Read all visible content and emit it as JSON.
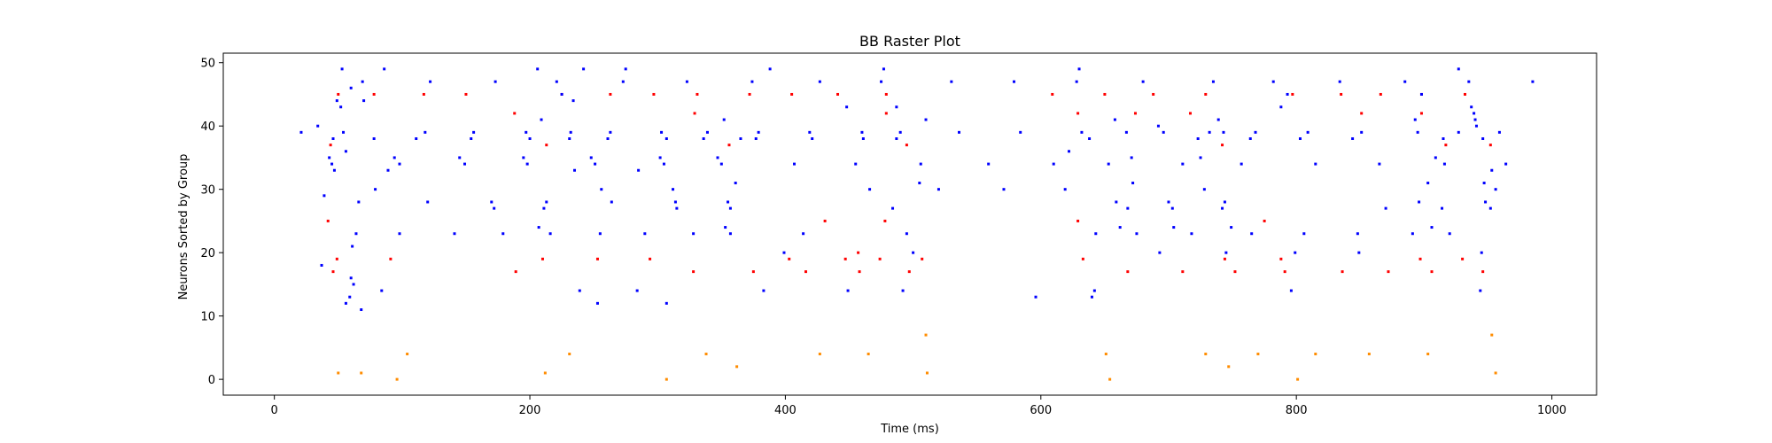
{
  "chart_data": {
    "type": "scatter",
    "title": "BB Raster Plot",
    "xlabel": "Time (ms)",
    "ylabel": "Neurons Sorted by Group",
    "xlim": [
      -40,
      1035
    ],
    "ylim": [
      -2.5,
      51.5
    ],
    "xticks": [
      0,
      200,
      400,
      600,
      800,
      1000
    ],
    "yticks": [
      0,
      10,
      20,
      30,
      40,
      50
    ],
    "grid": false,
    "series": [
      {
        "color": "#ff8c00",
        "points": [
          [
            50,
            1
          ],
          [
            68,
            1
          ],
          [
            96,
            0
          ],
          [
            104,
            4
          ],
          [
            212,
            1
          ],
          [
            231,
            4
          ],
          [
            307,
            0
          ],
          [
            338,
            4
          ],
          [
            362,
            2
          ],
          [
            427,
            4
          ],
          [
            465,
            4
          ],
          [
            510,
            7
          ],
          [
            511,
            1
          ],
          [
            651,
            4
          ],
          [
            654,
            0
          ],
          [
            729,
            4
          ],
          [
            747,
            2
          ],
          [
            770,
            4
          ],
          [
            801,
            0
          ],
          [
            815,
            4
          ],
          [
            857,
            4
          ],
          [
            903,
            4
          ],
          [
            953,
            7
          ],
          [
            956,
            1
          ]
        ]
      },
      {
        "color": "#ff0000",
        "points": [
          [
            42,
            25
          ],
          [
            44,
            37
          ],
          [
            46,
            17
          ],
          [
            49,
            19
          ],
          [
            50,
            45
          ],
          [
            78,
            45
          ],
          [
            91,
            19
          ],
          [
            117,
            45
          ],
          [
            150,
            45
          ],
          [
            188,
            42
          ],
          [
            189,
            17
          ],
          [
            210,
            19
          ],
          [
            213,
            37
          ],
          [
            225,
            45
          ],
          [
            253,
            19
          ],
          [
            263,
            45
          ],
          [
            294,
            19
          ],
          [
            297,
            45
          ],
          [
            328,
            17
          ],
          [
            329,
            42
          ],
          [
            331,
            45
          ],
          [
            356,
            37
          ],
          [
            372,
            45
          ],
          [
            375,
            17
          ],
          [
            403,
            19
          ],
          [
            405,
            45
          ],
          [
            416,
            17
          ],
          [
            431,
            25
          ],
          [
            441,
            45
          ],
          [
            447,
            19
          ],
          [
            457,
            20
          ],
          [
            458,
            17
          ],
          [
            474,
            19
          ],
          [
            478,
            25
          ],
          [
            479,
            42
          ],
          [
            479,
            45
          ],
          [
            495,
            37
          ],
          [
            497,
            17
          ],
          [
            507,
            19
          ],
          [
            609,
            45
          ],
          [
            629,
            42
          ],
          [
            629,
            25
          ],
          [
            633,
            19
          ],
          [
            650,
            45
          ],
          [
            668,
            17
          ],
          [
            674,
            42
          ],
          [
            688,
            45
          ],
          [
            711,
            17
          ],
          [
            717,
            42
          ],
          [
            729,
            45
          ],
          [
            742,
            37
          ],
          [
            744,
            19
          ],
          [
            752,
            17
          ],
          [
            775,
            25
          ],
          [
            788,
            19
          ],
          [
            791,
            17
          ],
          [
            797,
            45
          ],
          [
            835,
            45
          ],
          [
            836,
            17
          ],
          [
            851,
            42
          ],
          [
            866,
            45
          ],
          [
            872,
            17
          ],
          [
            897,
            19
          ],
          [
            898,
            42
          ],
          [
            898,
            45
          ],
          [
            906,
            17
          ],
          [
            917,
            37
          ],
          [
            930,
            19
          ],
          [
            932,
            45
          ],
          [
            946,
            17
          ],
          [
            952,
            37
          ]
        ]
      },
      {
        "color": "#0000ff",
        "points": [
          [
            21,
            39
          ],
          [
            34,
            40
          ],
          [
            37,
            18
          ],
          [
            39,
            29
          ],
          [
            43,
            35
          ],
          [
            45,
            34
          ],
          [
            46,
            38
          ],
          [
            47,
            33
          ],
          [
            49,
            44
          ],
          [
            52,
            43
          ],
          [
            53,
            49
          ],
          [
            54,
            39
          ],
          [
            56,
            36
          ],
          [
            56,
            12
          ],
          [
            59,
            13
          ],
          [
            60,
            16
          ],
          [
            60,
            46
          ],
          [
            61,
            21
          ],
          [
            62,
            15
          ],
          [
            64,
            23
          ],
          [
            66,
            28
          ],
          [
            68,
            11
          ],
          [
            69,
            47
          ],
          [
            70,
            44
          ],
          [
            78,
            38
          ],
          [
            79,
            30
          ],
          [
            84,
            14
          ],
          [
            86,
            49
          ],
          [
            89,
            33
          ],
          [
            94,
            35
          ],
          [
            98,
            23
          ],
          [
            98,
            34
          ],
          [
            111,
            38
          ],
          [
            118,
            39
          ],
          [
            120,
            28
          ],
          [
            122,
            47
          ],
          [
            141,
            23
          ],
          [
            145,
            35
          ],
          [
            149,
            34
          ],
          [
            154,
            38
          ],
          [
            156,
            39
          ],
          [
            170,
            28
          ],
          [
            172,
            27
          ],
          [
            173,
            47
          ],
          [
            179,
            23
          ],
          [
            195,
            35
          ],
          [
            197,
            39
          ],
          [
            198,
            34
          ],
          [
            200,
            38
          ],
          [
            206,
            49
          ],
          [
            207,
            24
          ],
          [
            209,
            41
          ],
          [
            211,
            27
          ],
          [
            213,
            28
          ],
          [
            216,
            23
          ],
          [
            221,
            47
          ],
          [
            225,
            45
          ],
          [
            231,
            38
          ],
          [
            232,
            39
          ],
          [
            234,
            44
          ],
          [
            235,
            33
          ],
          [
            239,
            14
          ],
          [
            242,
            49
          ],
          [
            248,
            35
          ],
          [
            251,
            34
          ],
          [
            253,
            12
          ],
          [
            255,
            23
          ],
          [
            256,
            30
          ],
          [
            261,
            38
          ],
          [
            263,
            39
          ],
          [
            264,
            28
          ],
          [
            273,
            47
          ],
          [
            275,
            49
          ],
          [
            284,
            14
          ],
          [
            285,
            33
          ],
          [
            290,
            23
          ],
          [
            302,
            35
          ],
          [
            303,
            39
          ],
          [
            305,
            34
          ],
          [
            307,
            38
          ],
          [
            307,
            12
          ],
          [
            312,
            30
          ],
          [
            314,
            28
          ],
          [
            315,
            27
          ],
          [
            323,
            47
          ],
          [
            328,
            23
          ],
          [
            336,
            38
          ],
          [
            339,
            39
          ],
          [
            347,
            35
          ],
          [
            350,
            34
          ],
          [
            352,
            41
          ],
          [
            353,
            24
          ],
          [
            355,
            28
          ],
          [
            357,
            27
          ],
          [
            357,
            23
          ],
          [
            361,
            31
          ],
          [
            365,
            38
          ],
          [
            374,
            47
          ],
          [
            377,
            38
          ],
          [
            379,
            39
          ],
          [
            383,
            14
          ],
          [
            388,
            49
          ],
          [
            399,
            20
          ],
          [
            407,
            34
          ],
          [
            414,
            23
          ],
          [
            419,
            39
          ],
          [
            421,
            38
          ],
          [
            427,
            47
          ],
          [
            448,
            43
          ],
          [
            449,
            14
          ],
          [
            455,
            34
          ],
          [
            460,
            39
          ],
          [
            461,
            38
          ],
          [
            466,
            30
          ],
          [
            475,
            47
          ],
          [
            477,
            49
          ],
          [
            484,
            27
          ],
          [
            487,
            38
          ],
          [
            487,
            43
          ],
          [
            490,
            39
          ],
          [
            492,
            14
          ],
          [
            495,
            23
          ],
          [
            500,
            20
          ],
          [
            505,
            31
          ],
          [
            506,
            34
          ],
          [
            510,
            41
          ],
          [
            520,
            30
          ],
          [
            530,
            47
          ],
          [
            536,
            39
          ],
          [
            559,
            34
          ],
          [
            571,
            30
          ],
          [
            579,
            47
          ],
          [
            584,
            39
          ],
          [
            596,
            13
          ],
          [
            610,
            34
          ],
          [
            619,
            30
          ],
          [
            622,
            36
          ],
          [
            628,
            47
          ],
          [
            630,
            49
          ],
          [
            632,
            39
          ],
          [
            638,
            38
          ],
          [
            640,
            13
          ],
          [
            642,
            14
          ],
          [
            643,
            23
          ],
          [
            653,
            34
          ],
          [
            658,
            41
          ],
          [
            659,
            28
          ],
          [
            662,
            24
          ],
          [
            667,
            39
          ],
          [
            668,
            27
          ],
          [
            671,
            35
          ],
          [
            672,
            31
          ],
          [
            675,
            23
          ],
          [
            680,
            47
          ],
          [
            692,
            40
          ],
          [
            693,
            20
          ],
          [
            696,
            39
          ],
          [
            700,
            28
          ],
          [
            703,
            27
          ],
          [
            704,
            24
          ],
          [
            711,
            34
          ],
          [
            718,
            23
          ],
          [
            723,
            38
          ],
          [
            725,
            35
          ],
          [
            728,
            30
          ],
          [
            732,
            39
          ],
          [
            735,
            47
          ],
          [
            739,
            41
          ],
          [
            742,
            27
          ],
          [
            743,
            39
          ],
          [
            744,
            28
          ],
          [
            745,
            20
          ],
          [
            749,
            24
          ],
          [
            757,
            34
          ],
          [
            764,
            38
          ],
          [
            765,
            23
          ],
          [
            768,
            39
          ],
          [
            782,
            47
          ],
          [
            788,
            43
          ],
          [
            793,
            45
          ],
          [
            796,
            14
          ],
          [
            799,
            20
          ],
          [
            803,
            38
          ],
          [
            806,
            23
          ],
          [
            809,
            39
          ],
          [
            815,
            34
          ],
          [
            834,
            47
          ],
          [
            844,
            38
          ],
          [
            848,
            23
          ],
          [
            849,
            20
          ],
          [
            851,
            39
          ],
          [
            865,
            34
          ],
          [
            870,
            27
          ],
          [
            885,
            47
          ],
          [
            891,
            23
          ],
          [
            893,
            41
          ],
          [
            896,
            28
          ],
          [
            895,
            39
          ],
          [
            898,
            45
          ],
          [
            903,
            31
          ],
          [
            906,
            24
          ],
          [
            909,
            35
          ],
          [
            914,
            27
          ],
          [
            915,
            38
          ],
          [
            916,
            34
          ],
          [
            920,
            23
          ],
          [
            927,
            39
          ],
          [
            927,
            49
          ],
          [
            935,
            47
          ],
          [
            937,
            43
          ],
          [
            939,
            42
          ],
          [
            940,
            41
          ],
          [
            941,
            40
          ],
          [
            944,
            14
          ],
          [
            945,
            20
          ],
          [
            946,
            38
          ],
          [
            947,
            31
          ],
          [
            948,
            28
          ],
          [
            952,
            27
          ],
          [
            953,
            33
          ],
          [
            956,
            30
          ],
          [
            959,
            39
          ],
          [
            964,
            34
          ],
          [
            985,
            47
          ]
        ]
      }
    ]
  }
}
